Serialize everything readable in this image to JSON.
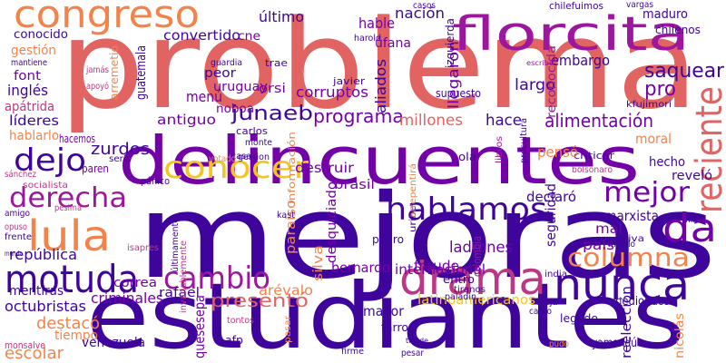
{
  "words": [
    "problema",
    "mejoras",
    "estudiantes",
    "delincuentes",
    "congreso",
    "florcita",
    "reciente",
    "junaeb",
    "dejo",
    "conocer",
    "hablamos",
    "mejor",
    "derecha",
    "lula",
    "da",
    "motuda",
    "cambio",
    "drama",
    "nunca",
    "columna",
    "presentó",
    "gestión",
    "conocido",
    "mantiene",
    "font",
    "inglés",
    "apátrida",
    "líderes",
    "hablarlo",
    "zurdos",
    "antiguo",
    "menú",
    "noboa",
    "peor",
    "uruguay",
    "orsi",
    "último",
    "hable",
    "convertido",
    "corruptos",
    "programa",
    "millones",
    "hace",
    "alimentación",
    "embargo",
    "saquear",
    "maduro",
    "chilenos",
    "largo",
    "pro",
    "moral",
    "hecho",
    "reveló",
    "criticar",
    "pensó",
    "declaró",
    "marxista",
    "país",
    "mal",
    "legado",
    "ladrones",
    "fraude",
    "entro",
    "bernardo",
    "internacional",
    "latinoamericanos",
    "tarro",
    "mayor",
    "criminales",
    "correa",
    "república",
    "mentiras",
    "octubristas",
    "destacó",
    "tiempo",
    "escolar",
    "venezuela",
    "rafael",
    "quesesepa",
    "arévalo",
    "destruir",
    "brasil",
    "desquiciado",
    "silva",
    "seguridad",
    "nación",
    "llegaron",
    "aliados",
    "reconocida",
    "izquierda",
    "úfana",
    "cne",
    "harold",
    "casos",
    "vargas",
    "chilefuimos",
    "guatemala",
    "jamás",
    "apoyó",
    "arremetió",
    "carlos",
    "casa",
    "monte",
    "votado",
    "serio",
    "paren",
    "hacemos",
    "sánchez",
    "socialista",
    "amigo",
    "opuso",
    "frente",
    "pánico",
    "información",
    "paraíso",
    "afp",
    "tontos",
    "pasar",
    "firme",
    "pesar",
    "tiende",
    "yamandú",
    "pudo",
    "hediondos",
    "reelección",
    "nicolás",
    "cargo",
    "vieja",
    "viva",
    "meollo",
    "milei",
    "bolsonaro",
    "ola",
    "libros",
    "procultura",
    "kfujimori",
    "supuesto",
    "javier",
    "trae",
    "guardia",
    "escribe",
    "paladin",
    "tiranos",
    "pedro",
    "uribe",
    "arrepentirá",
    "colombia",
    "india",
    "gestion",
    "isapres",
    "últimamente",
    "invariablemente",
    "monsalve",
    "kast",
    "mundo",
    "pesima"
  ]
}
